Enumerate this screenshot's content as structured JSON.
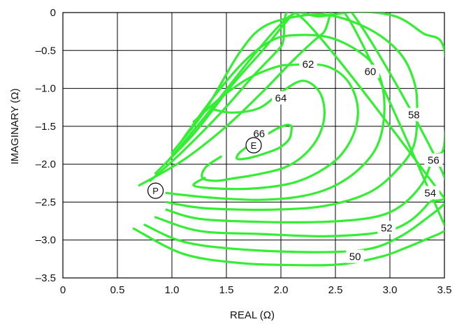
{
  "chart_data": {
    "type": "contour",
    "title": "",
    "xlabel": "REAL (Ω)",
    "ylabel": "IMAGINARY (Ω)",
    "xlim": [
      0,
      3.5
    ],
    "ylim": [
      -3.5,
      0
    ],
    "x_ticks": [
      0,
      0.5,
      1.0,
      1.5,
      2.0,
      2.5,
      3.0,
      3.5
    ],
    "x_tick_labels": [
      "0",
      "0.5",
      "1.0",
      "1.5",
      "2.0",
      "2.5",
      "3.0",
      "3.5"
    ],
    "y_ticks": [
      0,
      -0.5,
      -1.0,
      -1.5,
      -2.0,
      -2.5,
      -3.0,
      -3.5
    ],
    "y_tick_labels": [
      "0",
      "–0.5",
      "–1.0",
      "–1.5",
      "–2.0",
      "–2.5",
      "–3.0",
      "–3.5"
    ],
    "grid": true,
    "line_color": "#33ee33",
    "contours": [
      {
        "label": "66",
        "label_at": [
          1.8,
          -1.6
        ],
        "points": [
          [
            2.1,
            -1.5
          ],
          [
            2.06,
            -1.48
          ],
          [
            1.98,
            -1.52
          ],
          [
            1.88,
            -1.6
          ],
          [
            1.74,
            -1.72
          ],
          [
            1.62,
            -1.85
          ],
          [
            1.6,
            -1.93
          ],
          [
            1.7,
            -1.92
          ],
          [
            1.85,
            -1.86
          ],
          [
            1.99,
            -1.78
          ],
          [
            2.08,
            -1.66
          ],
          [
            2.1,
            -1.5
          ]
        ]
      },
      {
        "label": "64",
        "label_at": [
          2.0,
          -1.13
        ],
        "points": [
          [
            1.36,
            -1.27
          ],
          [
            1.55,
            -1.32
          ],
          [
            1.8,
            -1.26
          ],
          [
            2.0,
            -1.05
          ],
          [
            2.2,
            -0.9
          ],
          [
            2.35,
            -1.04
          ],
          [
            2.4,
            -1.32
          ],
          [
            2.35,
            -1.62
          ],
          [
            2.22,
            -1.87
          ],
          [
            2.04,
            -2.04
          ],
          [
            1.8,
            -2.13
          ],
          [
            1.55,
            -2.19
          ],
          [
            1.4,
            -2.22
          ],
          [
            1.28,
            -2.18
          ],
          [
            1.31,
            -2.04
          ],
          [
            1.45,
            -1.9
          ]
        ]
      },
      {
        "label": "62",
        "label_at": [
          2.25,
          -0.68
        ],
        "points": [
          [
            1.2,
            -1.44
          ],
          [
            1.45,
            -1.12
          ],
          [
            1.7,
            -0.87
          ],
          [
            1.95,
            -0.72
          ],
          [
            2.1,
            -0.69
          ],
          [
            2.4,
            -0.7
          ],
          [
            2.6,
            -0.88
          ],
          [
            2.7,
            -1.2
          ],
          [
            2.68,
            -1.55
          ],
          [
            2.55,
            -1.88
          ],
          [
            2.35,
            -2.1
          ],
          [
            2.1,
            -2.25
          ],
          [
            1.75,
            -2.32
          ],
          [
            1.4,
            -2.32
          ],
          [
            1.2,
            -2.28
          ],
          [
            1.3,
            -2.18
          ]
        ]
      },
      {
        "label": "60",
        "label_at": [
          2.82,
          -0.78
        ],
        "points": [
          [
            1.1,
            -1.67
          ],
          [
            1.4,
            -1.08
          ],
          [
            1.68,
            -0.62
          ],
          [
            1.9,
            -0.38
          ],
          [
            2.1,
            -0.3
          ],
          [
            2.45,
            -0.33
          ],
          [
            2.75,
            -0.55
          ],
          [
            2.9,
            -0.82
          ],
          [
            2.95,
            -1.25
          ],
          [
            2.9,
            -1.7
          ],
          [
            2.75,
            -2.02
          ],
          [
            2.5,
            -2.28
          ],
          [
            2.2,
            -2.42
          ],
          [
            1.8,
            -2.47
          ],
          [
            1.35,
            -2.44
          ],
          [
            0.95,
            -2.38
          ]
        ]
      },
      {
        "label": "58",
        "label_at": [
          3.22,
          -1.35
        ],
        "points": [
          [
            1.0,
            -1.85
          ],
          [
            1.3,
            -1.3
          ],
          [
            1.62,
            -0.53
          ],
          [
            1.85,
            -0.18
          ],
          [
            2.2,
            -0.04
          ],
          [
            2.5,
            -0.05
          ],
          [
            2.85,
            -0.25
          ],
          [
            3.1,
            -0.55
          ],
          [
            3.22,
            -0.9
          ],
          [
            3.25,
            -1.25
          ],
          [
            3.22,
            -1.75
          ],
          [
            3.05,
            -2.1
          ],
          [
            2.8,
            -2.38
          ],
          [
            2.4,
            -2.55
          ],
          [
            1.9,
            -2.6
          ],
          [
            1.3,
            -2.58
          ],
          [
            0.95,
            -2.5
          ]
        ]
      },
      {
        "label": "56",
        "label_at": [
          3.4,
          -1.95
        ],
        "points": [
          [
            0.95,
            -1.98
          ],
          [
            1.3,
            -1.38
          ],
          [
            1.7,
            -0.65
          ],
          [
            1.98,
            -0.18
          ],
          [
            2.15,
            0.0
          ],
          [
            2.35,
            -0.05
          ],
          [
            2.7,
            0.01
          ],
          [
            3.05,
            -0.05
          ],
          [
            3.3,
            -0.27
          ],
          [
            3.5,
            -0.5
          ],
          [
            3.5,
            -1.72
          ],
          [
            3.4,
            -1.9
          ],
          [
            3.3,
            -2.25
          ],
          [
            3.1,
            -2.55
          ],
          [
            2.85,
            -2.7
          ],
          [
            2.4,
            -2.76
          ],
          [
            1.8,
            -2.76
          ],
          [
            1.25,
            -2.72
          ],
          [
            0.95,
            -2.6
          ]
        ]
      },
      {
        "label": "54",
        "label_at": [
          3.37,
          -2.38
        ],
        "points": [
          [
            0.85,
            -2.12
          ],
          [
            1.2,
            -1.6
          ],
          [
            1.55,
            -0.96
          ],
          [
            1.85,
            -0.47
          ],
          [
            2.05,
            -0.12
          ],
          [
            2.15,
            0.0
          ],
          [
            2.35,
            -0.05
          ],
          [
            2.65,
            0.0
          ],
          [
            3.5,
            -2.17
          ],
          [
            3.35,
            -2.52
          ],
          [
            3.15,
            -2.78
          ],
          [
            2.9,
            -2.9
          ],
          [
            2.4,
            -2.95
          ],
          [
            1.8,
            -2.92
          ],
          [
            1.25,
            -2.88
          ],
          [
            0.85,
            -2.7
          ]
        ]
      },
      {
        "label": "52",
        "label_at": [
          2.97,
          -2.84
        ],
        "points": [
          [
            0.8,
            -2.22
          ],
          [
            1.1,
            -1.83
          ],
          [
            1.45,
            -1.32
          ],
          [
            1.75,
            -0.83
          ],
          [
            2.0,
            -0.45
          ],
          [
            2.2,
            -0.08
          ],
          [
            3.5,
            -2.45
          ],
          [
            3.5,
            -2.52
          ],
          [
            3.35,
            -2.7
          ],
          [
            3.1,
            -2.95
          ],
          [
            2.8,
            -3.12
          ],
          [
            2.3,
            -3.16
          ],
          [
            1.6,
            -3.12
          ],
          [
            1.1,
            -3.02
          ],
          [
            0.75,
            -2.8
          ]
        ]
      },
      {
        "label": "50",
        "label_at": [
          2.68,
          -3.22
        ],
        "points": [
          [
            0.7,
            -2.28
          ],
          [
            1.1,
            -1.95
          ],
          [
            1.5,
            -1.5
          ],
          [
            1.85,
            -1.02
          ],
          [
            2.12,
            -0.62
          ],
          [
            2.38,
            -0.28
          ],
          [
            2.62,
            -0.08
          ],
          [
            3.5,
            -2.8
          ],
          [
            3.5,
            -2.88
          ],
          [
            3.35,
            -2.98
          ],
          [
            3.15,
            -3.1
          ],
          [
            2.92,
            -3.22
          ],
          [
            2.55,
            -3.32
          ],
          [
            2.1,
            -3.33
          ],
          [
            1.6,
            -3.3
          ],
          [
            1.1,
            -3.18
          ],
          [
            0.65,
            -2.85
          ]
        ]
      }
    ],
    "markers": [
      {
        "label": "P",
        "x": 0.85,
        "y": -2.35
      },
      {
        "label": "E",
        "x": 1.75,
        "y": -1.75
      }
    ]
  }
}
